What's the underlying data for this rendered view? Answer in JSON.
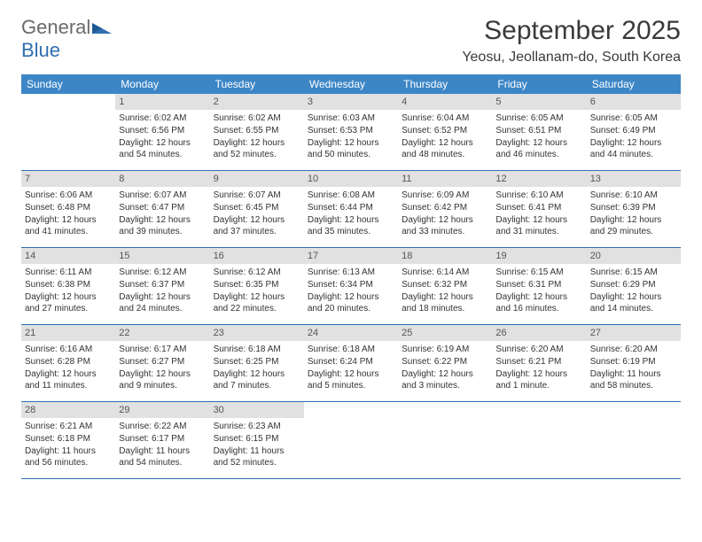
{
  "logo": {
    "text_main": "General",
    "text_blue": "Blue"
  },
  "title": {
    "month": "September 2025",
    "location": "Yeosu, Jeollanam-do, South Korea"
  },
  "colors": {
    "header_bg": "#3d86c6",
    "header_text": "#ffffff",
    "daynum_bg": "#e1e1e1",
    "row_border": "#2f6fb0",
    "logo_grey": "#6a6a6a",
    "logo_blue": "#2f6fb0"
  },
  "weekdays": [
    "Sunday",
    "Monday",
    "Tuesday",
    "Wednesday",
    "Thursday",
    "Friday",
    "Saturday"
  ],
  "weeks": [
    [
      {
        "num": "",
        "sunrise": "",
        "sunset": "",
        "daylight": ""
      },
      {
        "num": "1",
        "sunrise": "Sunrise: 6:02 AM",
        "sunset": "Sunset: 6:56 PM",
        "daylight": "Daylight: 12 hours and 54 minutes."
      },
      {
        "num": "2",
        "sunrise": "Sunrise: 6:02 AM",
        "sunset": "Sunset: 6:55 PM",
        "daylight": "Daylight: 12 hours and 52 minutes."
      },
      {
        "num": "3",
        "sunrise": "Sunrise: 6:03 AM",
        "sunset": "Sunset: 6:53 PM",
        "daylight": "Daylight: 12 hours and 50 minutes."
      },
      {
        "num": "4",
        "sunrise": "Sunrise: 6:04 AM",
        "sunset": "Sunset: 6:52 PM",
        "daylight": "Daylight: 12 hours and 48 minutes."
      },
      {
        "num": "5",
        "sunrise": "Sunrise: 6:05 AM",
        "sunset": "Sunset: 6:51 PM",
        "daylight": "Daylight: 12 hours and 46 minutes."
      },
      {
        "num": "6",
        "sunrise": "Sunrise: 6:05 AM",
        "sunset": "Sunset: 6:49 PM",
        "daylight": "Daylight: 12 hours and 44 minutes."
      }
    ],
    [
      {
        "num": "7",
        "sunrise": "Sunrise: 6:06 AM",
        "sunset": "Sunset: 6:48 PM",
        "daylight": "Daylight: 12 hours and 41 minutes."
      },
      {
        "num": "8",
        "sunrise": "Sunrise: 6:07 AM",
        "sunset": "Sunset: 6:47 PM",
        "daylight": "Daylight: 12 hours and 39 minutes."
      },
      {
        "num": "9",
        "sunrise": "Sunrise: 6:07 AM",
        "sunset": "Sunset: 6:45 PM",
        "daylight": "Daylight: 12 hours and 37 minutes."
      },
      {
        "num": "10",
        "sunrise": "Sunrise: 6:08 AM",
        "sunset": "Sunset: 6:44 PM",
        "daylight": "Daylight: 12 hours and 35 minutes."
      },
      {
        "num": "11",
        "sunrise": "Sunrise: 6:09 AM",
        "sunset": "Sunset: 6:42 PM",
        "daylight": "Daylight: 12 hours and 33 minutes."
      },
      {
        "num": "12",
        "sunrise": "Sunrise: 6:10 AM",
        "sunset": "Sunset: 6:41 PM",
        "daylight": "Daylight: 12 hours and 31 minutes."
      },
      {
        "num": "13",
        "sunrise": "Sunrise: 6:10 AM",
        "sunset": "Sunset: 6:39 PM",
        "daylight": "Daylight: 12 hours and 29 minutes."
      }
    ],
    [
      {
        "num": "14",
        "sunrise": "Sunrise: 6:11 AM",
        "sunset": "Sunset: 6:38 PM",
        "daylight": "Daylight: 12 hours and 27 minutes."
      },
      {
        "num": "15",
        "sunrise": "Sunrise: 6:12 AM",
        "sunset": "Sunset: 6:37 PM",
        "daylight": "Daylight: 12 hours and 24 minutes."
      },
      {
        "num": "16",
        "sunrise": "Sunrise: 6:12 AM",
        "sunset": "Sunset: 6:35 PM",
        "daylight": "Daylight: 12 hours and 22 minutes."
      },
      {
        "num": "17",
        "sunrise": "Sunrise: 6:13 AM",
        "sunset": "Sunset: 6:34 PM",
        "daylight": "Daylight: 12 hours and 20 minutes."
      },
      {
        "num": "18",
        "sunrise": "Sunrise: 6:14 AM",
        "sunset": "Sunset: 6:32 PM",
        "daylight": "Daylight: 12 hours and 18 minutes."
      },
      {
        "num": "19",
        "sunrise": "Sunrise: 6:15 AM",
        "sunset": "Sunset: 6:31 PM",
        "daylight": "Daylight: 12 hours and 16 minutes."
      },
      {
        "num": "20",
        "sunrise": "Sunrise: 6:15 AM",
        "sunset": "Sunset: 6:29 PM",
        "daylight": "Daylight: 12 hours and 14 minutes."
      }
    ],
    [
      {
        "num": "21",
        "sunrise": "Sunrise: 6:16 AM",
        "sunset": "Sunset: 6:28 PM",
        "daylight": "Daylight: 12 hours and 11 minutes."
      },
      {
        "num": "22",
        "sunrise": "Sunrise: 6:17 AM",
        "sunset": "Sunset: 6:27 PM",
        "daylight": "Daylight: 12 hours and 9 minutes."
      },
      {
        "num": "23",
        "sunrise": "Sunrise: 6:18 AM",
        "sunset": "Sunset: 6:25 PM",
        "daylight": "Daylight: 12 hours and 7 minutes."
      },
      {
        "num": "24",
        "sunrise": "Sunrise: 6:18 AM",
        "sunset": "Sunset: 6:24 PM",
        "daylight": "Daylight: 12 hours and 5 minutes."
      },
      {
        "num": "25",
        "sunrise": "Sunrise: 6:19 AM",
        "sunset": "Sunset: 6:22 PM",
        "daylight": "Daylight: 12 hours and 3 minutes."
      },
      {
        "num": "26",
        "sunrise": "Sunrise: 6:20 AM",
        "sunset": "Sunset: 6:21 PM",
        "daylight": "Daylight: 12 hours and 1 minute."
      },
      {
        "num": "27",
        "sunrise": "Sunrise: 6:20 AM",
        "sunset": "Sunset: 6:19 PM",
        "daylight": "Daylight: 11 hours and 58 minutes."
      }
    ],
    [
      {
        "num": "28",
        "sunrise": "Sunrise: 6:21 AM",
        "sunset": "Sunset: 6:18 PM",
        "daylight": "Daylight: 11 hours and 56 minutes."
      },
      {
        "num": "29",
        "sunrise": "Sunrise: 6:22 AM",
        "sunset": "Sunset: 6:17 PM",
        "daylight": "Daylight: 11 hours and 54 minutes."
      },
      {
        "num": "30",
        "sunrise": "Sunrise: 6:23 AM",
        "sunset": "Sunset: 6:15 PM",
        "daylight": "Daylight: 11 hours and 52 minutes."
      },
      {
        "num": "",
        "sunrise": "",
        "sunset": "",
        "daylight": ""
      },
      {
        "num": "",
        "sunrise": "",
        "sunset": "",
        "daylight": ""
      },
      {
        "num": "",
        "sunrise": "",
        "sunset": "",
        "daylight": ""
      },
      {
        "num": "",
        "sunrise": "",
        "sunset": "",
        "daylight": ""
      }
    ]
  ]
}
